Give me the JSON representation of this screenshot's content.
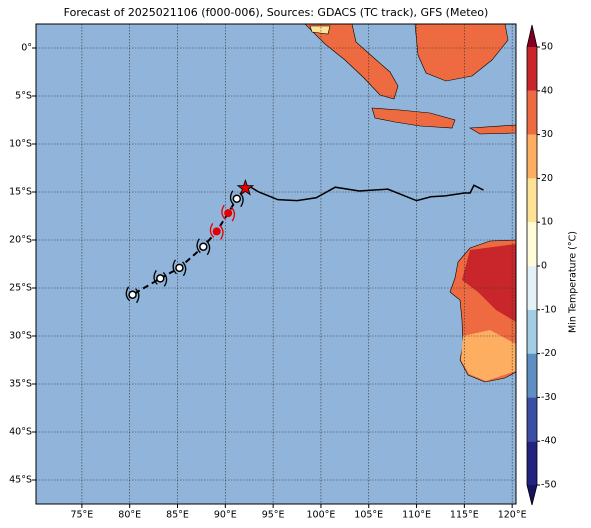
{
  "chart_data": {
    "type": "map",
    "title": "Forecast of 2025021106 (f000-006), Sources: GDACS (TC track), GFS (Meteo)",
    "xlim": [
      70.2,
      120.4
    ],
    "ylim": [
      -47.5,
      2.5
    ],
    "xticks": [
      {
        "value": 75,
        "label": "75°E"
      },
      {
        "value": 80,
        "label": "80°E"
      },
      {
        "value": 85,
        "label": "85°E"
      },
      {
        "value": 90,
        "label": "90°E"
      },
      {
        "value": 95,
        "label": "95°E"
      },
      {
        "value": 100,
        "label": "100°E"
      },
      {
        "value": 105,
        "label": "105°E"
      },
      {
        "value": 110,
        "label": "110°E"
      },
      {
        "value": 115,
        "label": "115°E"
      },
      {
        "value": 120,
        "label": "120°E"
      }
    ],
    "yticks": [
      {
        "value": 0,
        "label": "0°"
      },
      {
        "value": -5,
        "label": "5°S"
      },
      {
        "value": -10,
        "label": "10°S"
      },
      {
        "value": -15,
        "label": "15°S"
      },
      {
        "value": -20,
        "label": "20°S"
      },
      {
        "value": -25,
        "label": "25°S"
      },
      {
        "value": -30,
        "label": "30°S"
      },
      {
        "value": -35,
        "label": "35°S"
      },
      {
        "value": -40,
        "label": "40°S"
      },
      {
        "value": -45,
        "label": "45°S"
      }
    ],
    "grid": true,
    "ocean_color": "#91b4da",
    "colorbar": {
      "label": "Min Temperature (°C)",
      "ticks": [
        -50,
        -40,
        -30,
        -20,
        -10,
        0,
        10,
        20,
        30,
        40,
        50
      ],
      "colors": [
        "#22227f",
        "#3a4fa3",
        "#5f8fc2",
        "#a3cde3",
        "#e2f2f7",
        "#fffdd8",
        "#fee396",
        "#fdae61",
        "#ee6a40",
        "#c9262b"
      ],
      "under": "#141460",
      "over": "#850020"
    },
    "past_track": {
      "x": [
        92.5,
        93.5,
        95.5,
        97.5,
        99.5,
        101.5,
        104,
        107,
        110,
        111.5,
        113,
        115,
        115.6,
        116,
        117
      ],
      "y": [
        -14.4,
        -15.0,
        -15.8,
        -15.9,
        -15.6,
        -14.5,
        -14.9,
        -14.7,
        -15.9,
        -15.5,
        -15.4,
        -15.1,
        -15.1,
        -14.3,
        -14.8
      ],
      "color": "#000000"
    },
    "current": {
      "x": 92.1,
      "y": -14.6,
      "color": "#e00000"
    },
    "observed": {
      "x": [
        90.3,
        89.1
      ],
      "y": [
        -17.2,
        -19.1
      ],
      "color": "#e00000"
    },
    "forecast": {
      "x": [
        91.2,
        87.7,
        85.2,
        83.2,
        80.3
      ],
      "y": [
        -15.7,
        -20.7,
        -22.9,
        -24.0,
        -25.7
      ],
      "color": "#ffffff"
    }
  }
}
